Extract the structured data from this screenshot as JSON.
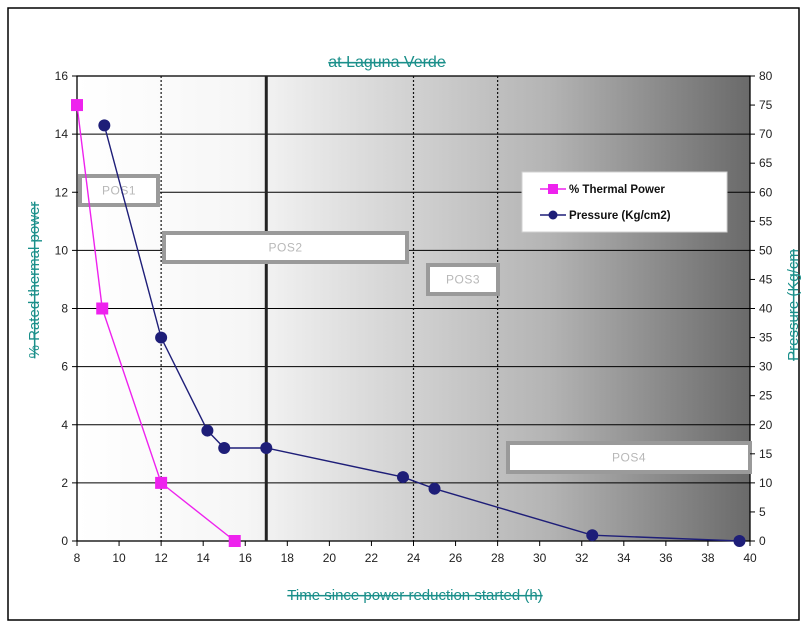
{
  "chart_data": {
    "type": "line",
    "title": "at Laguna Verde",
    "xlabel": "Time since power reduction started (h)",
    "ylabel": "% Rated thermal power",
    "y2label": "Pressure (Kg/cm",
    "xlim": [
      8,
      40
    ],
    "ylim": [
      0,
      16
    ],
    "y2lim": [
      0,
      80
    ],
    "x_ticks": [
      "8",
      "10",
      "12",
      "14",
      "16",
      "18",
      "20",
      "22",
      "24",
      "26",
      "28",
      "30",
      "32",
      "34",
      "36",
      "38",
      "40"
    ],
    "y_ticks": [
      "0",
      "2",
      "4",
      "6",
      "8",
      "10",
      "12",
      "14",
      "16"
    ],
    "y2_ticks": [
      "0",
      "5",
      "10",
      "15",
      "20",
      "25",
      "30",
      "35",
      "40",
      "45",
      "50",
      "55",
      "60",
      "65",
      "70",
      "75",
      "80"
    ],
    "grid": true,
    "legend_position": "upper-right",
    "series": [
      {
        "name": "% Thermal Power",
        "axis": "left",
        "color": "#ee22ee",
        "marker": "square",
        "x": [
          8.0,
          9.2,
          12.0,
          15.5
        ],
        "y": [
          15,
          8,
          2,
          0
        ]
      },
      {
        "name": "Pressure (Kg/cm2)",
        "axis": "right",
        "color": "#1e1e78",
        "marker": "circle",
        "x": [
          9.3,
          12.0,
          14.2,
          15.0,
          17.0,
          23.5,
          25.0,
          32.5,
          39.5
        ],
        "y": [
          71.5,
          35,
          19,
          16,
          16,
          11,
          9,
          1,
          0
        ]
      }
    ],
    "phase_boxes": [
      {
        "label": "POS1"
      },
      {
        "label": "POS2"
      },
      {
        "label": "POS3"
      },
      {
        "label": "POS4"
      }
    ],
    "phase_lines_x": [
      12,
      24,
      28
    ],
    "solid_line_x": 17
  }
}
